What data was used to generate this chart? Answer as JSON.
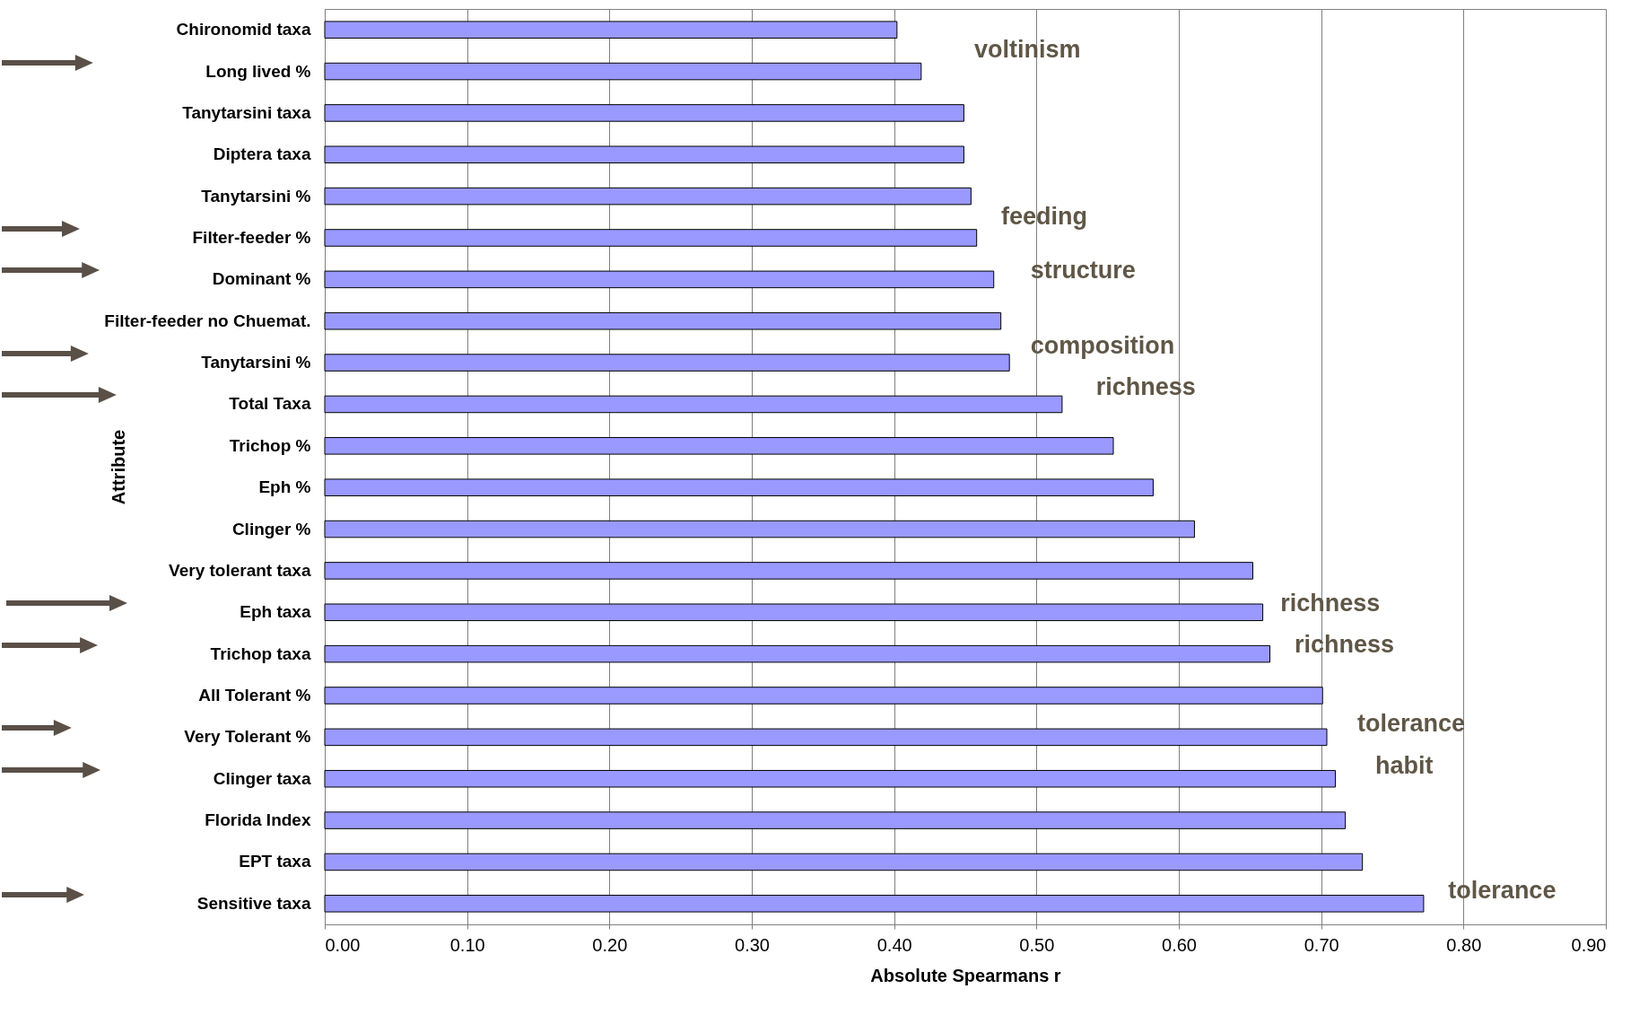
{
  "chart_data": {
    "type": "bar",
    "orientation": "horizontal",
    "xlabel": "Absolute Spearmans r",
    "ylabel": "Attribute",
    "categories": [
      "Chironomid taxa",
      "Long lived %",
      "Tanytarsini taxa",
      "Diptera taxa",
      "Tanytarsini %",
      "Filter-feeder %",
      "Dominant %",
      "Filter-feeder no Chuemat.",
      "Tanytarsini %",
      "Total Taxa",
      "Trichop %",
      "Eph %",
      "Clinger %",
      "Very tolerant taxa",
      "Eph taxa",
      "Trichop taxa",
      "All Tolerant %",
      "Very Tolerant %",
      "Clinger taxa",
      "Florida Index",
      "EPT taxa",
      "Sensitive taxa"
    ],
    "values": [
      0.402,
      0.419,
      0.449,
      0.449,
      0.454,
      0.458,
      0.47,
      0.475,
      0.481,
      0.518,
      0.554,
      0.582,
      0.611,
      0.652,
      0.659,
      0.664,
      0.701,
      0.704,
      0.71,
      0.717,
      0.729,
      0.772
    ],
    "color": "#9999ff",
    "xlim": [
      0,
      0.9
    ],
    "xticks": [
      {
        "value": 0,
        "label": "0.00"
      },
      {
        "value": 0.1,
        "label": "0.10"
      },
      {
        "value": 0.2,
        "label": "0.20"
      },
      {
        "value": 0.3,
        "label": "0.30"
      },
      {
        "value": 0.4,
        "label": "0.40"
      },
      {
        "value": 0.5,
        "label": "0.50"
      },
      {
        "value": 0.6,
        "label": "0.60"
      },
      {
        "value": 0.7,
        "label": "0.70"
      },
      {
        "value": 0.8,
        "label": "0.80"
      },
      {
        "value": 0.9,
        "label": "0.90"
      }
    ],
    "grid": "x",
    "annotations": [
      "voltinism",
      "feeding",
      "structure",
      "composition",
      "richness",
      "richness",
      "richness",
      "tolerance",
      "habit",
      "tolerance"
    ]
  }
}
